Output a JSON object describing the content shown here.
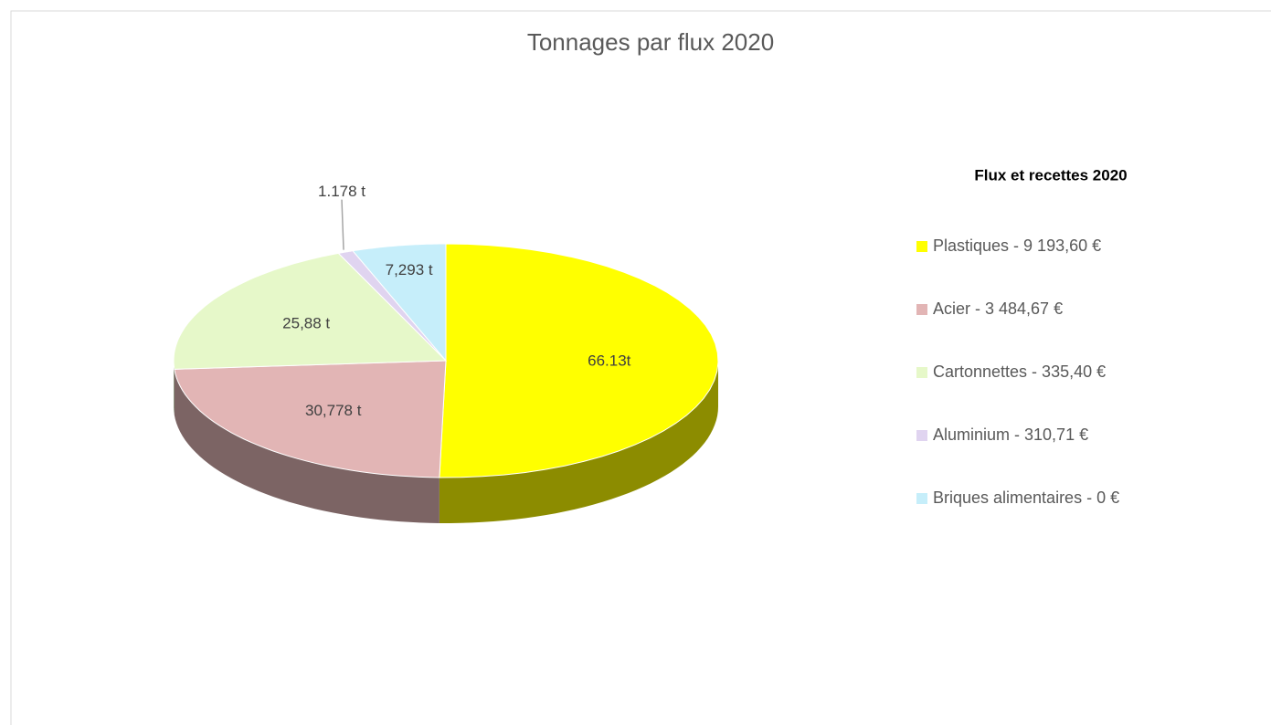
{
  "chart_data": {
    "type": "pie3d",
    "title": "Tonnages par flux 2020",
    "legend_title": "Flux et recettes 2020",
    "categories": [
      "Plastiques - 9 193,60 €",
      "Acier - 3 484,67 €",
      "Cartonnettes - 335,40 €",
      "Aluminium - 310,71 €",
      "Briques alimentaires - 0 €"
    ],
    "values": [
      66.13,
      30.778,
      25.88,
      1.178,
      7.293
    ],
    "value_labels": [
      "66.13t",
      "30,778 t",
      "25,88 t",
      "1.178 t",
      "7,293 t"
    ],
    "colors": [
      "#ffff00",
      "#e2b5b5",
      "#e6f8c9",
      "#e0d4f0",
      "#c6eefa"
    ],
    "legend": "right"
  }
}
